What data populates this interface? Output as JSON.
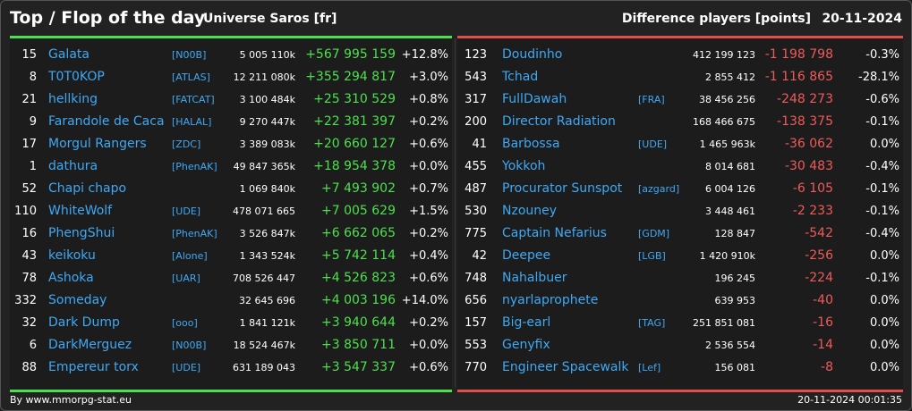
{
  "header": {
    "title": "Top / Flop of the day",
    "universe": "Universe Saros [fr]",
    "subtitle": "Difference players [points]",
    "date": "20-11-2024"
  },
  "top": [
    {
      "rank": "15",
      "name": "Galata",
      "ally": "[N00B]",
      "points": "5 005 110k",
      "diff": "+567 995 159",
      "pct": "+12.8%"
    },
    {
      "rank": "8",
      "name": "T0T0KOP",
      "ally": "[ATLAS]",
      "points": "12 211 080k",
      "diff": "+355 294 817",
      "pct": "+3.0%"
    },
    {
      "rank": "21",
      "name": "hellking",
      "ally": "[FATCAT]",
      "points": "3 100 484k",
      "diff": "+25 310 529",
      "pct": "+0.8%"
    },
    {
      "rank": "9",
      "name": "Farandole de Caca",
      "ally": "[HALAL]",
      "points": "9 270 447k",
      "diff": "+22 381 397",
      "pct": "+0.2%"
    },
    {
      "rank": "17",
      "name": "Morgul Rangers",
      "ally": "[ZDC]",
      "points": "3 389 083k",
      "diff": "+20 660 127",
      "pct": "+0.6%"
    },
    {
      "rank": "1",
      "name": "dathura",
      "ally": "[PhenAK]",
      "points": "49 847 365k",
      "diff": "+18 954 378",
      "pct": "+0.0%"
    },
    {
      "rank": "52",
      "name": "Chapi chapo",
      "ally": "",
      "points": "1 069 840k",
      "diff": "+7 493 902",
      "pct": "+0.7%"
    },
    {
      "rank": "110",
      "name": "WhiteWolf",
      "ally": "[UDE]",
      "points": "478 071 665",
      "diff": "+7 005 629",
      "pct": "+1.5%"
    },
    {
      "rank": "16",
      "name": "PhengShui",
      "ally": "[PhenAK]",
      "points": "3 526 847k",
      "diff": "+6 662 065",
      "pct": "+0.2%"
    },
    {
      "rank": "43",
      "name": "keikoku",
      "ally": "[Alone]",
      "points": "1 343 524k",
      "diff": "+5 742 114",
      "pct": "+0.4%"
    },
    {
      "rank": "78",
      "name": "Ashoka",
      "ally": "[UAR]",
      "points": "708 526 447",
      "diff": "+4 526 823",
      "pct": "+0.6%"
    },
    {
      "rank": "332",
      "name": "Someday",
      "ally": "",
      "points": "32 645 696",
      "diff": "+4 003 196",
      "pct": "+14.0%"
    },
    {
      "rank": "32",
      "name": "Dark Dump",
      "ally": "[ooo]",
      "points": "1 841 121k",
      "diff": "+3 940 644",
      "pct": "+0.2%"
    },
    {
      "rank": "6",
      "name": "DarkMerguez",
      "ally": "[N00B]",
      "points": "18 524 467k",
      "diff": "+3 850 711",
      "pct": "+0.0%"
    },
    {
      "rank": "88",
      "name": "Empereur torx",
      "ally": "[UDE]",
      "points": "631 189 043",
      "diff": "+3 547 337",
      "pct": "+0.6%"
    }
  ],
  "flop": [
    {
      "rank": "123",
      "name": "Doudinho",
      "ally": "",
      "points": "412 199 123",
      "diff": "-1 198 798",
      "pct": "-0.3%"
    },
    {
      "rank": "543",
      "name": "Tchad",
      "ally": "",
      "points": "2 855 412",
      "diff": "-1 116 865",
      "pct": "-28.1%"
    },
    {
      "rank": "317",
      "name": "FullDawah",
      "ally": "[FRA]",
      "points": "38 456 256",
      "diff": "-248 273",
      "pct": "-0.6%"
    },
    {
      "rank": "200",
      "name": "Director Radiation",
      "ally": "",
      "points": "168 466 675",
      "diff": "-138 375",
      "pct": "-0.1%"
    },
    {
      "rank": "41",
      "name": "Barbossa",
      "ally": "[UDE]",
      "points": "1 465 963k",
      "diff": "-36 062",
      "pct": "0.0%"
    },
    {
      "rank": "455",
      "name": "Yokkoh",
      "ally": "",
      "points": "8 014 681",
      "diff": "-30 483",
      "pct": "-0.4%"
    },
    {
      "rank": "487",
      "name": "Procurator Sunspot",
      "ally": "[azgard]",
      "points": "6 004 126",
      "diff": "-6 105",
      "pct": "-0.1%"
    },
    {
      "rank": "530",
      "name": "Nzouney",
      "ally": "",
      "points": "3 448 461",
      "diff": "-2 233",
      "pct": "-0.1%"
    },
    {
      "rank": "775",
      "name": "Captain Nefarius",
      "ally": "[GDM]",
      "points": "128 847",
      "diff": "-542",
      "pct": "-0.4%"
    },
    {
      "rank": "42",
      "name": "Deepee",
      "ally": "[LGB]",
      "points": "1 420 910k",
      "diff": "-256",
      "pct": "0.0%"
    },
    {
      "rank": "748",
      "name": "Nahalbuer",
      "ally": "",
      "points": "196 245",
      "diff": "-224",
      "pct": "-0.1%"
    },
    {
      "rank": "656",
      "name": "nyarlaprophete",
      "ally": "",
      "points": "639 953",
      "diff": "-40",
      "pct": "0.0%"
    },
    {
      "rank": "157",
      "name": "Big-earl",
      "ally": "[TAG]",
      "points": "251 851 081",
      "diff": "-16",
      "pct": "0.0%"
    },
    {
      "rank": "553",
      "name": "Genyfix",
      "ally": "",
      "points": "2 536 554",
      "diff": "-14",
      "pct": "0.0%"
    },
    {
      "rank": "770",
      "name": "Engineer Spacewalk",
      "ally": "[Lef]",
      "points": "156 081",
      "diff": "-8",
      "pct": "0.0%"
    }
  ],
  "footer": {
    "credit": "By www.mmorpg-stat.eu",
    "timestamp": "20-11-2024 00:01:35"
  },
  "colors": {
    "positive": "#4de04d",
    "negative": "#f05a5a",
    "link": "#3fa9f5"
  }
}
